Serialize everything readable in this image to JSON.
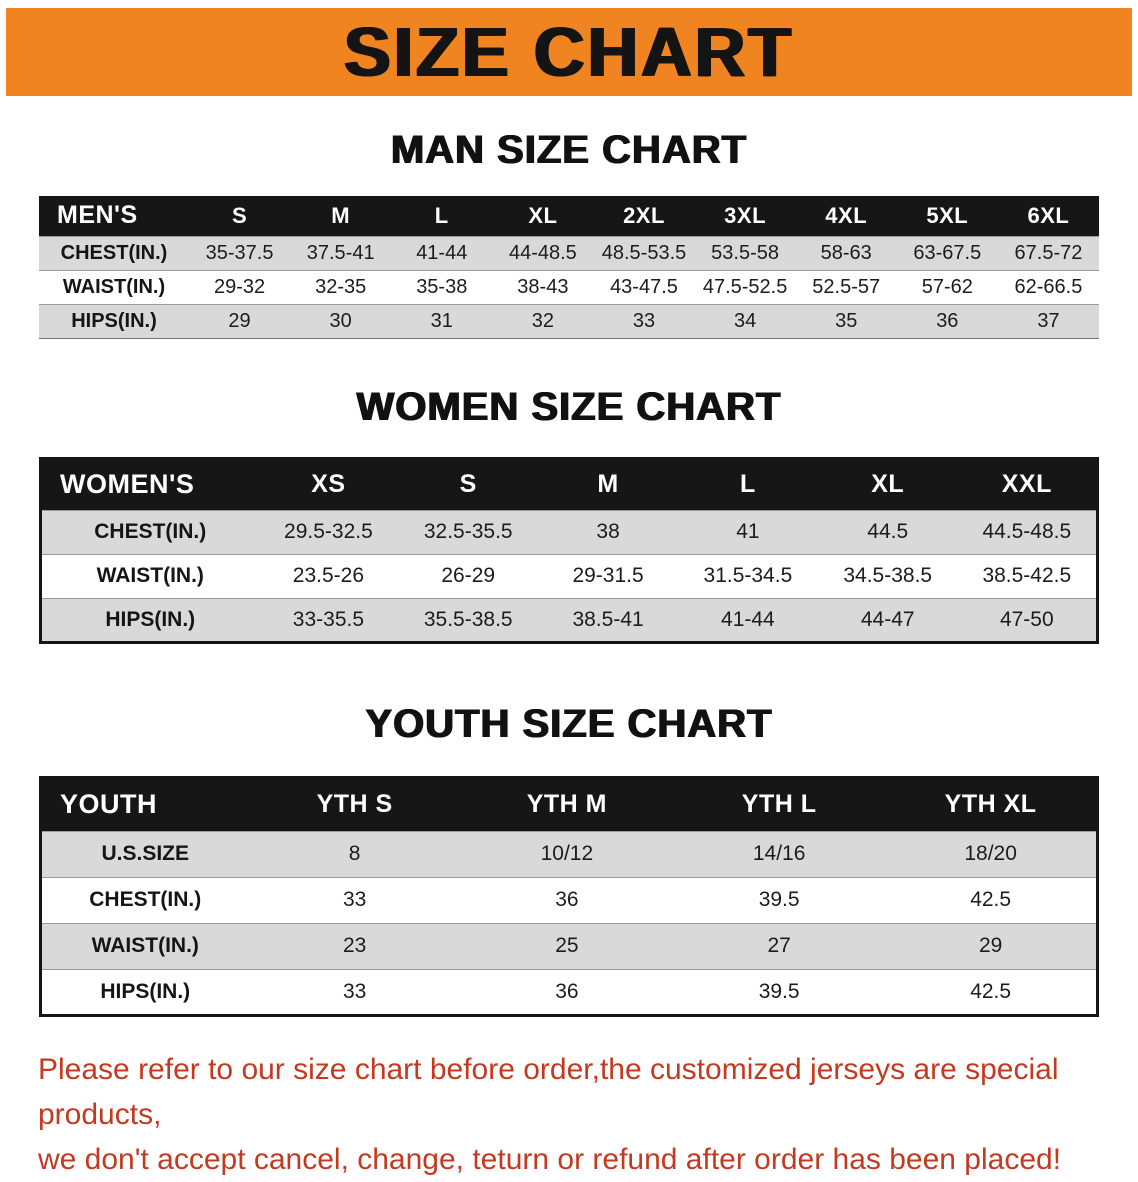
{
  "banner": {
    "title": "SIZE CHART",
    "background_color": "#f08421",
    "text_color": "#141414"
  },
  "colors": {
    "table_header_background": "#161616",
    "table_header_text": "#ffffff",
    "row_stripe": "#d9d9d9",
    "footer_text": "#c43a20"
  },
  "sections": [
    {
      "id": "men",
      "title": "MAN SIZE CHART",
      "header": [
        "MEN'S",
        "S",
        "M",
        "L",
        "XL",
        "2XL",
        "3XL",
        "4XL",
        "5XL",
        "6XL"
      ],
      "rows": [
        [
          "CHEST(IN.)",
          "35-37.5",
          "37.5-41",
          "41-44",
          "44-48.5",
          "48.5-53.5",
          "53.5-58",
          "58-63",
          "63-67.5",
          "67.5-72"
        ],
        [
          "WAIST(IN.)",
          "29-32",
          "32-35",
          "35-38",
          "38-43",
          "43-47.5",
          "47.5-52.5",
          "52.5-57",
          "57-62",
          "62-66.5"
        ],
        [
          "HIPS(IN.)",
          "29",
          "30",
          "31",
          "32",
          "33",
          "34",
          "35",
          "36",
          "37"
        ]
      ]
    },
    {
      "id": "women",
      "title": "WOMEN SIZE CHART",
      "header": [
        "WOMEN'S",
        "XS",
        "S",
        "M",
        "L",
        "XL",
        "XXL"
      ],
      "rows": [
        [
          "CHEST(IN.)",
          "29.5-32.5",
          "32.5-35.5",
          "38",
          "41",
          "44.5",
          "44.5-48.5"
        ],
        [
          "WAIST(IN.)",
          "23.5-26",
          "26-29",
          "29-31.5",
          "31.5-34.5",
          "34.5-38.5",
          "38.5-42.5"
        ],
        [
          "HIPS(IN.)",
          "33-35.5",
          "35.5-38.5",
          "38.5-41",
          "41-44",
          "44-47",
          "47-50"
        ]
      ]
    },
    {
      "id": "youth",
      "title": "YOUTH SIZE CHART",
      "header": [
        "YOUTH",
        "YTH S",
        "YTH M",
        "YTH L",
        "YTH XL"
      ],
      "rows": [
        [
          "U.S.SIZE",
          "8",
          "10/12",
          "14/16",
          "18/20"
        ],
        [
          "CHEST(IN.)",
          "33",
          "36",
          "39.5",
          "42.5"
        ],
        [
          "WAIST(IN.)",
          "23",
          "25",
          "27",
          "29"
        ],
        [
          "HIPS(IN.)",
          "33",
          "36",
          "39.5",
          "42.5"
        ]
      ]
    }
  ],
  "footer": {
    "lines": [
      "Please refer to our size chart before order,the customized jerseys are special products,",
      "we don't accept cancel, change, teturn or refund after order has been placed!"
    ]
  }
}
